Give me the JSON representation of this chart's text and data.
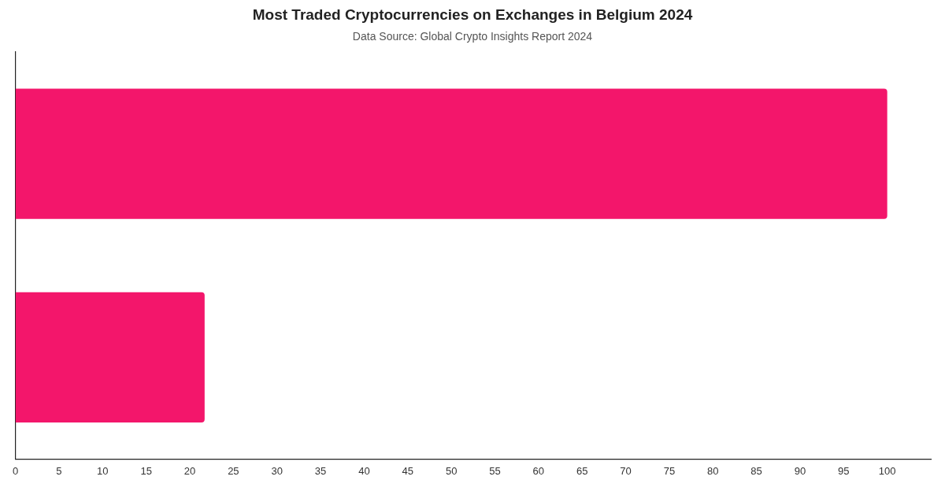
{
  "chart_data": {
    "type": "bar",
    "orientation": "horizontal",
    "title": "Most Traded Cryptocurrencies on Exchanges in Belgium 2024",
    "subtitle": "Data Source: Global Crypto Insights Report 2024",
    "categories": [
      null,
      null
    ],
    "values": [
      100,
      21.7
    ],
    "color": "#f3166b",
    "xlim": [
      0,
      105
    ],
    "xticks": [
      0,
      5,
      10,
      15,
      20,
      25,
      30,
      35,
      40,
      45,
      50,
      55,
      60,
      65,
      70,
      75,
      80,
      85,
      90,
      95,
      100
    ],
    "grid": false,
    "legend": false
  }
}
